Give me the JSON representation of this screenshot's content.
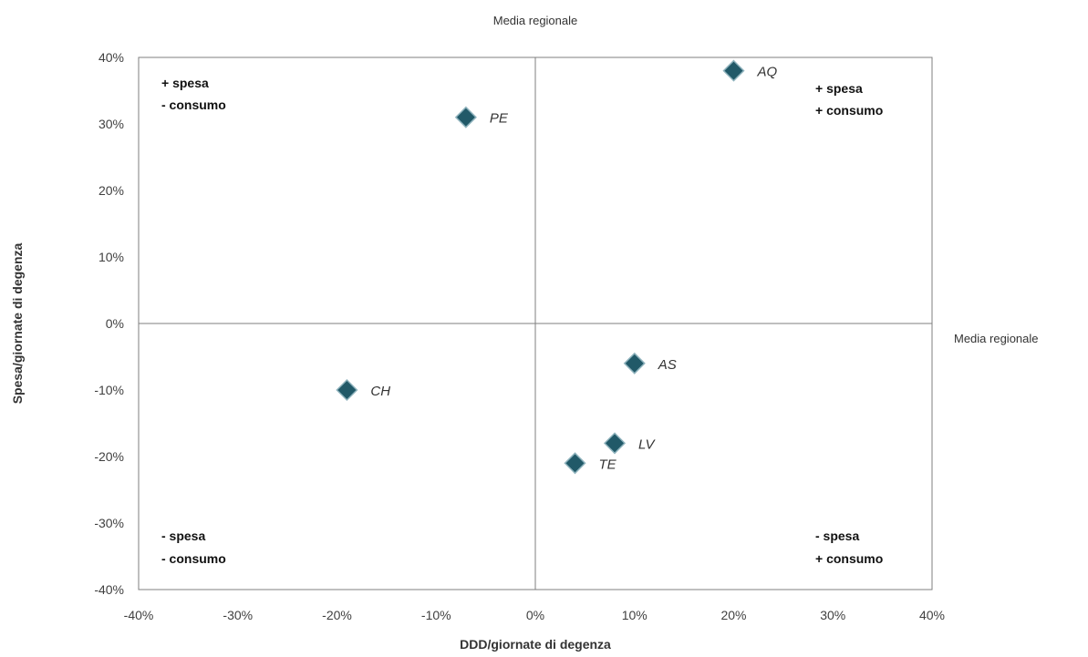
{
  "chart_data": {
    "type": "scatter",
    "title": "",
    "xlabel": "DDD/giornate di degenza",
    "ylabel": "Spesa/giornate di degenza",
    "xlim": [
      -40,
      40
    ],
    "ylim": [
      -40,
      40
    ],
    "x_ticks": [
      "-40%",
      "-30%",
      "-20%",
      "-10%",
      "0%",
      "10%",
      "20%",
      "30%",
      "40%"
    ],
    "y_ticks": [
      "40%",
      "30%",
      "20%",
      "10%",
      "0%",
      "-10%",
      "-20%",
      "-30%",
      "-40%"
    ],
    "grid": false,
    "reference_lines": {
      "vertical_label": "Media regionale",
      "horizontal_label": "Media regionale"
    },
    "points": [
      {
        "label": "AQ",
        "x": 20,
        "y": 38
      },
      {
        "label": "PE",
        "x": -7,
        "y": 31
      },
      {
        "label": "AS",
        "x": 10,
        "y": -6
      },
      {
        "label": "CH",
        "x": -19,
        "y": -10
      },
      {
        "label": "LV",
        "x": 8,
        "y": -18
      },
      {
        "label": "TE",
        "x": 4,
        "y": -21
      }
    ],
    "marker_color": "#215968",
    "quadrant_labels": {
      "top_left": [
        "+ spesa",
        "- consumo"
      ],
      "top_right": [
        "+ spesa",
        "+ consumo"
      ],
      "bottom_left": [
        "- spesa",
        "- consumo"
      ],
      "bottom_right": [
        "- spesa",
        "+ consumo"
      ]
    }
  }
}
